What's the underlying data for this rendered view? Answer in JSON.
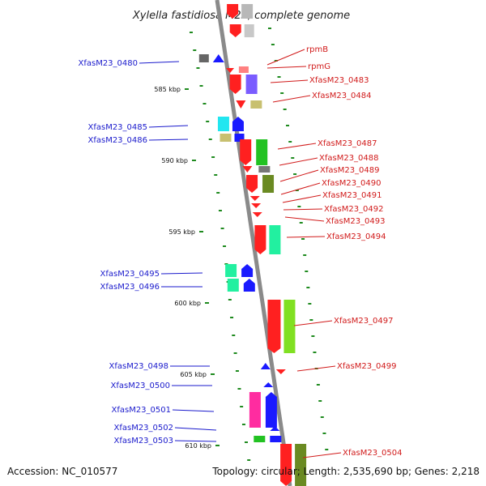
{
  "title": "Xylella fastidiosa M23, complete genome",
  "footer": {
    "accession": "Accession: NC_010577",
    "topology": "Topology: circular; Length: 2,535,690 bp; Genes: 2,218"
  },
  "colors": {
    "backbone": "#8a8a8a",
    "tick": "#1e8a1e",
    "left_label": "#1a1acc",
    "right_label": "#d11a1a"
  },
  "scale_labels": [
    "585 kbp",
    "590 kbp",
    "595 kbp",
    "600 kbp",
    "605 kbp",
    "610 kbp"
  ],
  "left_labels": [
    "XfasM23_0480",
    "XfasM23_0485",
    "XfasM23_0486",
    "XfasM23_0495",
    "XfasM23_0496",
    "XfasM23_0498",
    "XfasM23_0500",
    "XfasM23_0501",
    "XfasM23_0502",
    "XfasM23_0503"
  ],
  "right_labels": [
    "rpmB",
    "rpmG",
    "XfasM23_0483",
    "XfasM23_0484",
    "XfasM23_0487",
    "XfasM23_0488",
    "XfasM23_0489",
    "XfasM23_0490",
    "XfasM23_0491",
    "XfasM23_0492",
    "XfasM23_0493",
    "XfasM23_0494",
    "XfasM23_0497",
    "XfasM23_0499",
    "XfasM23_0504"
  ]
}
